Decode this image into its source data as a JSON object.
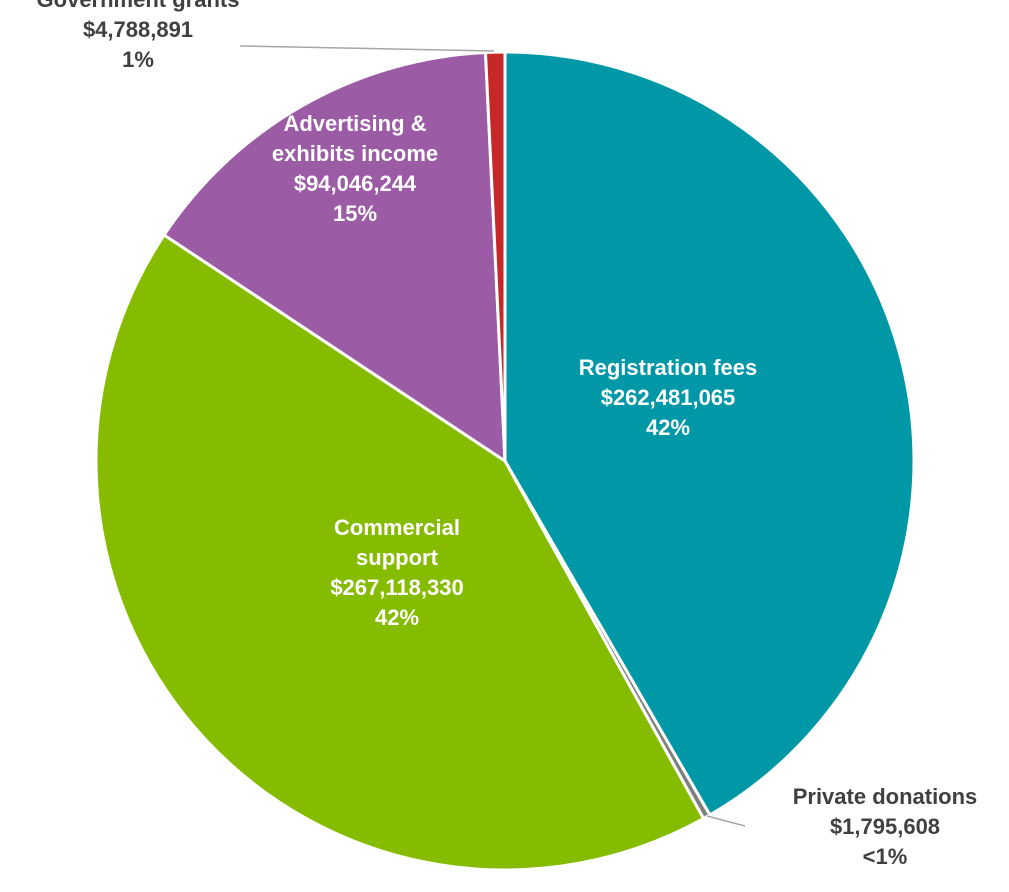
{
  "chart_data": {
    "type": "pie",
    "title": "",
    "start_angle_deg": 0,
    "direction": "clockwise",
    "slices": [
      {
        "name": "Registration fees",
        "value": 262481065,
        "value_label": "$262,481,065",
        "percent_label": "42%",
        "color": "#0097a7",
        "label_position": "inside",
        "label_lines": [
          "Registration fees"
        ]
      },
      {
        "name": "Private donations",
        "value": 1795608,
        "value_label": "$1,795,608",
        "percent_label": "<1%",
        "color": "#7f7f7f",
        "label_position": "outside",
        "label_lines": [
          "Private donations"
        ]
      },
      {
        "name": "Commercial support",
        "value": 267118330,
        "value_label": "$267,118,330",
        "percent_label": "42%",
        "color": "#85bc00",
        "label_position": "inside",
        "label_lines": [
          "Commercial",
          "support"
        ]
      },
      {
        "name": "Advertising & exhibits income",
        "value": 94046244,
        "value_label": "$94,046,244",
        "percent_label": "15%",
        "color": "#9b5ba5",
        "label_position": "inside",
        "label_lines": [
          "Advertising &",
          "exhibits income"
        ]
      },
      {
        "name": "Government grants",
        "value": 4788891,
        "value_label": "$4,788,891",
        "percent_label": "1%",
        "color": "#c62828",
        "label_position": "outside",
        "label_lines": [
          "Government grants"
        ]
      }
    ]
  }
}
